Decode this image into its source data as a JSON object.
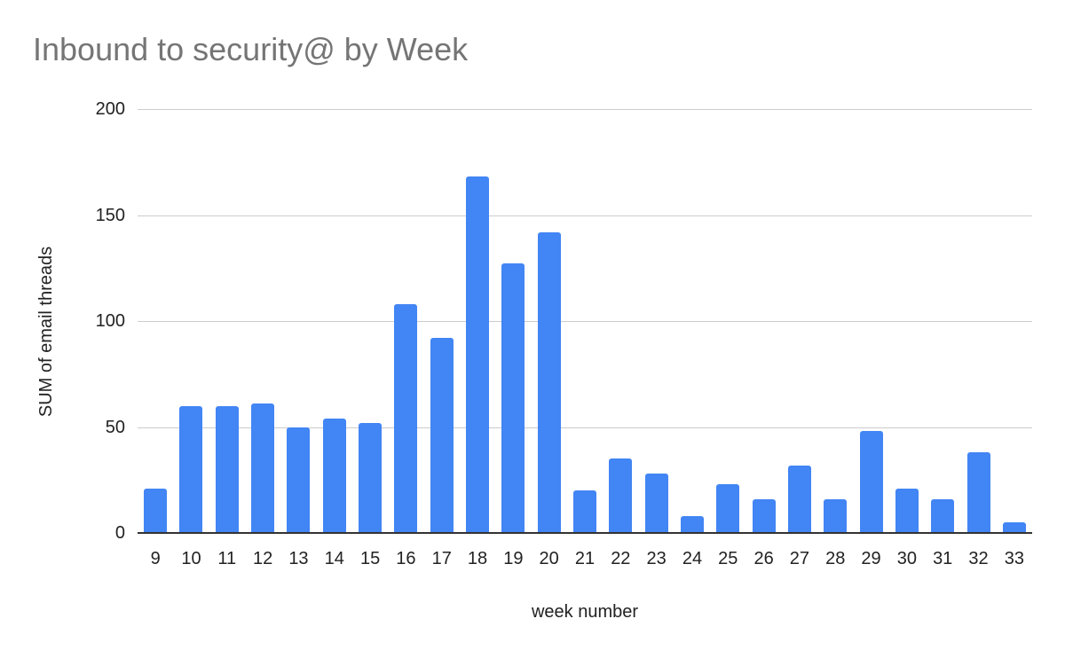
{
  "chart_data": {
    "type": "bar",
    "title": "Inbound to security@ by Week",
    "xlabel": "week number",
    "ylabel": "SUM of email threads",
    "categories": [
      "9",
      "10",
      "11",
      "12",
      "13",
      "14",
      "15",
      "16",
      "17",
      "18",
      "19",
      "20",
      "21",
      "22",
      "23",
      "24",
      "25",
      "26",
      "27",
      "28",
      "29",
      "30",
      "31",
      "32",
      "33"
    ],
    "series": [
      {
        "name": "SUM of email threads",
        "color": "#4285F4",
        "values": [
          21,
          60,
          60,
          61,
          50,
          54,
          52,
          108,
          92,
          168,
          127,
          142,
          20,
          35,
          28,
          8,
          23,
          16,
          32,
          16,
          48,
          21,
          16,
          38,
          5
        ]
      }
    ],
    "ylim": [
      0,
      200
    ],
    "yticks": [
      0,
      50,
      100,
      150,
      200
    ],
    "grid": true,
    "legend": "none"
  },
  "colors": {
    "bar": "#4285F4",
    "title": "#757575",
    "gridline": "#cccccc",
    "axis": "#333333",
    "text": "#222222"
  }
}
